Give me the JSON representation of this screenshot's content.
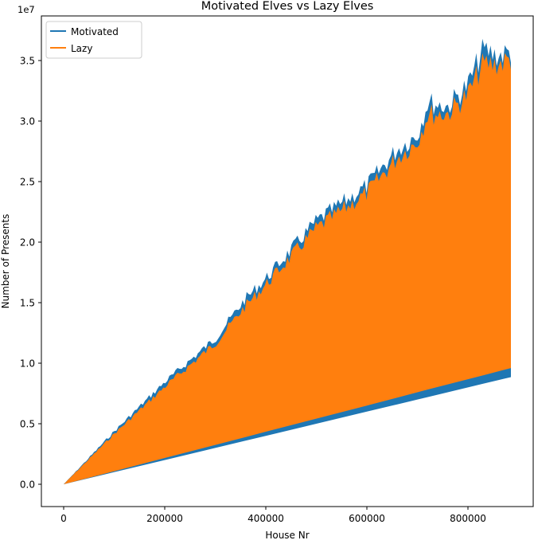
{
  "chart_data": {
    "type": "line",
    "title": "Motivated Elves vs Lazy Elves",
    "xlabel": "House Nr",
    "ylabel": "Number of Presents",
    "y_offset_label": "1e7",
    "xlim": [
      -45000,
      930000
    ],
    "ylim": [
      -1800000,
      38500000
    ],
    "x_ticks": [
      0,
      200000,
      400000,
      600000,
      800000
    ],
    "x_tick_labels": [
      "0",
      "200000",
      "400000",
      "600000",
      "800000"
    ],
    "y_ticks": [
      0,
      5000000,
      10000000,
      15000000,
      20000000,
      25000000,
      30000000,
      35000000
    ],
    "y_tick_labels": [
      "0.0",
      "0.5",
      "1.0",
      "1.5",
      "2.0",
      "2.5",
      "3.0",
      "3.5"
    ],
    "grid": false,
    "legend_position": "top-left",
    "x": [
      0,
      100000,
      200000,
      300000,
      360000,
      400000,
      500000,
      600000,
      660000,
      700000,
      720000,
      760000,
      800000,
      830000,
      860000,
      885000
    ],
    "series": [
      {
        "name": "Motivated",
        "color": "#1f77b4",
        "upper": [
          0,
          4500000,
          8700000,
          12400000,
          15800000,
          17500000,
          22400000,
          25400000,
          28500000,
          29800000,
          32500000,
          32200000,
          34000000,
          37000000,
          36500000,
          36800000
        ],
        "lower": [
          0,
          1000000,
          2000000,
          3000000,
          3600000,
          4000000,
          5000000,
          6000000,
          6600000,
          7000000,
          7200000,
          7600000,
          8000000,
          8300000,
          8600000,
          8850000
        ]
      },
      {
        "name": "Lazy",
        "color": "#ff7f0e",
        "upper": [
          0,
          4300000,
          8300000,
          12000000,
          15200000,
          17000000,
          21800000,
          24800000,
          27800000,
          29200000,
          31500000,
          31600000,
          33200000,
          35800000,
          35800000,
          36200000
        ],
        "lower": [
          0,
          1080000,
          2170000,
          3250000,
          3900000,
          4340000,
          5420000,
          6500000,
          7160000,
          7600000,
          7820000,
          8250000,
          8680000,
          9000000,
          9330000,
          9600000
        ]
      }
    ]
  }
}
